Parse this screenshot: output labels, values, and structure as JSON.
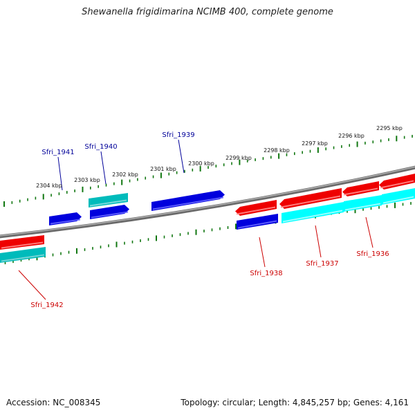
{
  "title": "Shewanella frigidimarina NCIMB 400, complete genome",
  "footer": {
    "accession": "Accession: NC_008345",
    "topology": "Topology: circular; Length: 4,845,257 bp; Genes: 4,161"
  },
  "colors": {
    "backbone": "#8a8a8a",
    "forward_gene": "#0000dd",
    "reverse_gene": "#ee0000",
    "forward_cds": "#00bbbb",
    "reverse_cds": "#00ffff",
    "tick": "#117711",
    "forward_label": "#000099",
    "reverse_label": "#cc0000"
  },
  "scale": {
    "unit": "kbp",
    "labels": [
      "2295 kbp",
      "2296 kbp",
      "2297 kbp",
      "2298 kbp",
      "2299 kbp",
      "2300 kbp",
      "2301 kbp",
      "2302 kbp",
      "2303 kbp",
      "2304 kbp"
    ]
  },
  "genes": [
    {
      "locus": "Sfri_1936",
      "strand": "reverse"
    },
    {
      "locus": "Sfri_1937",
      "strand": "reverse"
    },
    {
      "locus": "Sfri_1938",
      "strand": "reverse"
    },
    {
      "locus": "Sfri_1939",
      "strand": "forward"
    },
    {
      "locus": "Sfri_1940",
      "strand": "forward"
    },
    {
      "locus": "Sfri_1941",
      "strand": "forward"
    },
    {
      "locus": "Sfri_1942",
      "strand": "reverse"
    }
  ]
}
